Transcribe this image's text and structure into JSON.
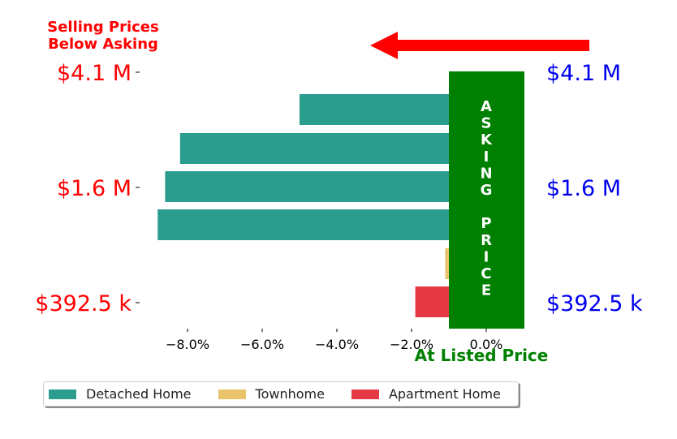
{
  "colors": {
    "detached": "#2a9d8f",
    "townhome": "#e9c46a",
    "apartment": "#e63946",
    "left_labels": "#ff0000",
    "right_labels": "#0000ee",
    "asking_box": "#008000",
    "arrow": "#ff0000",
    "at_listed": "#008000"
  },
  "annotations": {
    "top_left_line1": "Selling Prices",
    "top_left_line2": "Below Asking",
    "asking_price_vertical": "A S K I N G   P R I C E",
    "at_listed_price": "At Listed Price"
  },
  "chart_data": {
    "type": "bar",
    "orientation": "horizontal",
    "xlim": [
      -9.3,
      1.0
    ],
    "x_ticks": [
      -8,
      -6,
      -4,
      -2,
      0
    ],
    "x_tick_labels": [
      "−8.0%",
      "−6.0%",
      "−4.0%",
      "−2.0%",
      "0.0%"
    ],
    "left_y_labels": [
      "$4.1 M",
      "$1.6 M",
      "$392.5 k"
    ],
    "right_y_labels": [
      "$4.1 M",
      "$1.6 M",
      "$392.5 k"
    ],
    "bars": [
      {
        "series": "Detached Home",
        "value": -5.0
      },
      {
        "series": "Detached Home",
        "value": -8.2
      },
      {
        "series": "Detached Home",
        "value": -8.6
      },
      {
        "series": "Detached Home",
        "value": -8.8
      },
      {
        "series": "Townhome",
        "value": -1.1
      },
      {
        "series": "Apartment Home",
        "value": -1.9
      }
    ],
    "legend": [
      "Detached Home",
      "Townhome",
      "Apartment Home"
    ],
    "legend_position": "bottom-left",
    "grid": false
  }
}
